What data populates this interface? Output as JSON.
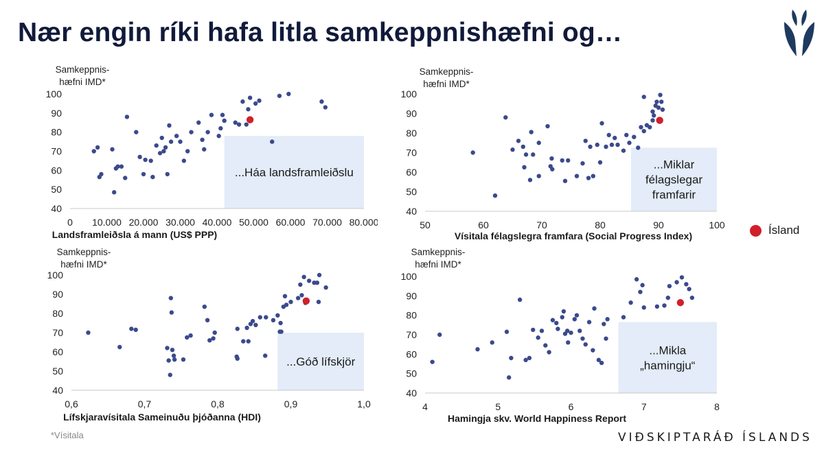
{
  "page": {
    "title": "Nær engin ríki hafa litla samkeppnishæfni og…",
    "footnote": "*Vísitala",
    "brand": "VIÐSKIPTARÁÐ ÍSLANDS",
    "legend_label": "Ísland",
    "logo_icon": "shield-leaf-logo-icon"
  },
  "colors": {
    "dot": "#3b4a8c",
    "highlight": "#d0202a",
    "callout": "#e3ecf8",
    "title": "#111a3a"
  },
  "chart_data": [
    {
      "type": "scatter",
      "ylabel": [
        "Samkeppnis-",
        "hæfni IMD*"
      ],
      "xlabel": "Landsframleiðsla á mann (US$ PPP)",
      "xlim": [
        0,
        80000
      ],
      "ylim": [
        40,
        100
      ],
      "xticks": [
        0,
        10000,
        20000,
        30000,
        40000,
        50000,
        60000,
        70000,
        80000
      ],
      "xtick_labels": [
        "0",
        "10.000",
        "20.000",
        "30.000",
        "40.000",
        "50.000",
        "60.000",
        "70.000",
        "80.000"
      ],
      "yticks": [
        40,
        50,
        60,
        70,
        80,
        90,
        100
      ],
      "callout": {
        "text": [
          "...Háa landsframleiðslu"
        ],
        "x0": 42000,
        "x1": 80000,
        "y0": 40,
        "y1": 78
      },
      "highlight": {
        "x": 49000,
        "y": 86.5
      },
      "points": [
        [
          6500,
          70
        ],
        [
          7500,
          72
        ],
        [
          8000,
          56.5
        ],
        [
          8500,
          58
        ],
        [
          11500,
          71
        ],
        [
          12000,
          48.5
        ],
        [
          12500,
          61
        ],
        [
          13000,
          62
        ],
        [
          14000,
          62
        ],
        [
          15000,
          56
        ],
        [
          15500,
          88
        ],
        [
          18000,
          80
        ],
        [
          19000,
          67
        ],
        [
          20000,
          58
        ],
        [
          20500,
          65.5
        ],
        [
          22000,
          65
        ],
        [
          22500,
          56.5
        ],
        [
          23500,
          73
        ],
        [
          24500,
          69
        ],
        [
          25000,
          77
        ],
        [
          25500,
          70
        ],
        [
          26000,
          72
        ],
        [
          26500,
          58
        ],
        [
          27000,
          83.5
        ],
        [
          27500,
          75
        ],
        [
          29000,
          78
        ],
        [
          30000,
          75
        ],
        [
          31000,
          65
        ],
        [
          32000,
          70
        ],
        [
          33000,
          80
        ],
        [
          35000,
          85
        ],
        [
          36000,
          76
        ],
        [
          36500,
          71
        ],
        [
          37500,
          80
        ],
        [
          38500,
          89
        ],
        [
          40500,
          78
        ],
        [
          41000,
          82
        ],
        [
          41500,
          89
        ],
        [
          42000,
          86
        ],
        [
          45000,
          85
        ],
        [
          46000,
          84
        ],
        [
          47000,
          96
        ],
        [
          48000,
          84
        ],
        [
          48500,
          92
        ],
        [
          49000,
          98
        ],
        [
          50500,
          95
        ],
        [
          51500,
          96.5
        ],
        [
          55000,
          75
        ],
        [
          57000,
          99
        ],
        [
          59500,
          100
        ],
        [
          68500,
          96
        ],
        [
          69500,
          93
        ]
      ]
    },
    {
      "type": "scatter",
      "ylabel": [
        "Samkeppnis-",
        "hæfni IMD*"
      ],
      "xlabel": "Vísitala félagslegra framfara (Social Progress Index)",
      "xlim": [
        50,
        100
      ],
      "ylim": [
        40,
        100
      ],
      "xticks": [
        50,
        60,
        70,
        80,
        90,
        100
      ],
      "xtick_labels": [
        "50",
        "60",
        "70",
        "80",
        "90",
        "100"
      ],
      "yticks": [
        40,
        50,
        60,
        70,
        80,
        90,
        100
      ],
      "callout": {
        "text": [
          "...Miklar",
          "félagslegar",
          "framfarir"
        ],
        "x0": 85.3,
        "x1": 100,
        "y0": 40,
        "y1": 72.5
      },
      "highlight": {
        "x": 90.2,
        "y": 86.5
      },
      "points": [
        [
          58.2,
          70
        ],
        [
          62,
          48
        ],
        [
          63.8,
          88
        ],
        [
          65,
          71.5
        ],
        [
          66,
          76
        ],
        [
          66.8,
          73
        ],
        [
          67,
          62.5
        ],
        [
          67.3,
          69
        ],
        [
          68,
          56
        ],
        [
          68.2,
          80.5
        ],
        [
          68.5,
          69
        ],
        [
          69.5,
          75
        ],
        [
          69.5,
          58
        ],
        [
          71,
          83.5
        ],
        [
          71.5,
          63
        ],
        [
          71.7,
          67
        ],
        [
          71.8,
          61.5
        ],
        [
          73.5,
          66
        ],
        [
          74,
          55.5
        ],
        [
          74.5,
          66
        ],
        [
          76,
          58
        ],
        [
          77,
          64.5
        ],
        [
          77.5,
          76
        ],
        [
          78,
          57
        ],
        [
          78.3,
          73
        ],
        [
          78.8,
          58
        ],
        [
          79.5,
          74
        ],
        [
          80,
          65
        ],
        [
          80.3,
          85
        ],
        [
          81,
          73
        ],
        [
          81.5,
          79
        ],
        [
          82,
          74
        ],
        [
          82.5,
          77.5
        ],
        [
          83,
          74
        ],
        [
          84,
          71
        ],
        [
          84.5,
          79
        ],
        [
          85,
          75
        ],
        [
          85.8,
          78
        ],
        [
          86.5,
          72.5
        ],
        [
          87,
          83
        ],
        [
          87.5,
          98.5
        ],
        [
          87.5,
          81
        ],
        [
          88,
          84
        ],
        [
          88.5,
          83
        ],
        [
          89,
          86.5
        ],
        [
          89,
          91
        ],
        [
          89.2,
          89
        ],
        [
          89.5,
          94
        ],
        [
          89.7,
          96
        ],
        [
          90,
          93
        ],
        [
          90.3,
          99.5
        ],
        [
          90.5,
          96
        ],
        [
          90.7,
          92
        ]
      ]
    },
    {
      "type": "scatter",
      "ylabel": [
        "Samkeppnis-",
        "hæfni IMD*"
      ],
      "xlabel": "Lífskjaravísitala Sameinuðu þjóðanna (HDI)",
      "xlim": [
        0.6,
        1.0
      ],
      "ylim": [
        40,
        100
      ],
      "xticks": [
        0.6,
        0.7,
        0.8,
        0.9,
        1.0
      ],
      "xtick_labels": [
        "0,6",
        "0,7",
        "0,8",
        "0,9",
        "1,0"
      ],
      "yticks": [
        40,
        50,
        60,
        70,
        80,
        90,
        100
      ],
      "callout": {
        "text": [
          "...Góð lífskjör"
        ],
        "x0": 0.882,
        "x1": 1.0,
        "y0": 40,
        "y1": 70
      },
      "highlight": {
        "x": 0.921,
        "y": 86.5
      },
      "points": [
        [
          0.623,
          70
        ],
        [
          0.666,
          62.5
        ],
        [
          0.682,
          72
        ],
        [
          0.688,
          71.5
        ],
        [
          0.731,
          62
        ],
        [
          0.733,
          55.5
        ],
        [
          0.735,
          48
        ],
        [
          0.736,
          88
        ],
        [
          0.737,
          80.5
        ],
        [
          0.738,
          61
        ],
        [
          0.74,
          58
        ],
        [
          0.741,
          56
        ],
        [
          0.753,
          56
        ],
        [
          0.758,
          67.5
        ],
        [
          0.763,
          68.5
        ],
        [
          0.782,
          83.5
        ],
        [
          0.786,
          76.5
        ],
        [
          0.789,
          66
        ],
        [
          0.794,
          67
        ],
        [
          0.796,
          70
        ],
        [
          0.826,
          57.5
        ],
        [
          0.827,
          72
        ],
        [
          0.827,
          56.5
        ],
        [
          0.835,
          65.5
        ],
        [
          0.84,
          72.5
        ],
        [
          0.842,
          65.5
        ],
        [
          0.845,
          74.5
        ],
        [
          0.848,
          76
        ],
        [
          0.852,
          74
        ],
        [
          0.858,
          78
        ],
        [
          0.865,
          58
        ],
        [
          0.866,
          78
        ],
        [
          0.876,
          76.5
        ],
        [
          0.882,
          79
        ],
        [
          0.885,
          70.5
        ],
        [
          0.886,
          75
        ],
        [
          0.887,
          70.5
        ],
        [
          0.89,
          83.5
        ],
        [
          0.892,
          89
        ],
        [
          0.894,
          84.5
        ],
        [
          0.9,
          86
        ],
        [
          0.91,
          88
        ],
        [
          0.913,
          95
        ],
        [
          0.915,
          89.5
        ],
        [
          0.918,
          99
        ],
        [
          0.92,
          85.5
        ],
        [
          0.925,
          97
        ],
        [
          0.932,
          96
        ],
        [
          0.936,
          96
        ],
        [
          0.938,
          86
        ],
        [
          0.939,
          100
        ],
        [
          0.948,
          93.5
        ]
      ]
    },
    {
      "type": "scatter",
      "ylabel": [
        "Samkeppnis-",
        "hæfni IMD*"
      ],
      "xlabel": "Hamingja skv. World Happiness Report",
      "xlim": [
        4,
        8
      ],
      "ylim": [
        40,
        100
      ],
      "xticks": [
        4,
        5,
        6,
        7,
        8
      ],
      "xtick_labels": [
        "4",
        "5",
        "6",
        "7",
        "8"
      ],
      "yticks": [
        40,
        50,
        60,
        70,
        80,
        90,
        100
      ],
      "callout": {
        "text": [
          "...Mikla",
          "„hamingju“"
        ],
        "x0": 6.65,
        "x1": 8,
        "y0": 40,
        "y1": 76.5
      },
      "highlight": {
        "x": 7.5,
        "y": 86.5
      },
      "points": [
        [
          4.1,
          56
        ],
        [
          4.2,
          70
        ],
        [
          4.72,
          62.5
        ],
        [
          4.92,
          66
        ],
        [
          5.12,
          71.5
        ],
        [
          5.15,
          48
        ],
        [
          5.18,
          58
        ],
        [
          5.3,
          88
        ],
        [
          5.38,
          57
        ],
        [
          5.43,
          58
        ],
        [
          5.48,
          72.5
        ],
        [
          5.55,
          68.5
        ],
        [
          5.6,
          72
        ],
        [
          5.65,
          64.5
        ],
        [
          5.7,
          61
        ],
        [
          5.75,
          77.5
        ],
        [
          5.8,
          76
        ],
        [
          5.82,
          73
        ],
        [
          5.88,
          79
        ],
        [
          5.9,
          82
        ],
        [
          5.92,
          70.5
        ],
        [
          5.95,
          72
        ],
        [
          5.96,
          66
        ],
        [
          6.0,
          71
        ],
        [
          6.05,
          78
        ],
        [
          6.08,
          80
        ],
        [
          6.12,
          72
        ],
        [
          6.16,
          68
        ],
        [
          6.2,
          65
        ],
        [
          6.25,
          76.5
        ],
        [
          6.3,
          62
        ],
        [
          6.32,
          83.5
        ],
        [
          6.38,
          57
        ],
        [
          6.42,
          55.5
        ],
        [
          6.45,
          75.5
        ],
        [
          6.48,
          68
        ],
        [
          6.5,
          78
        ],
        [
          6.72,
          79
        ],
        [
          6.82,
          86.5
        ],
        [
          6.9,
          98.5
        ],
        [
          6.95,
          92
        ],
        [
          6.98,
          95.5
        ],
        [
          7.0,
          84
        ],
        [
          7.18,
          84.5
        ],
        [
          7.28,
          85
        ],
        [
          7.33,
          89
        ],
        [
          7.35,
          95
        ],
        [
          7.45,
          97
        ],
        [
          7.52,
          99.5
        ],
        [
          7.58,
          96
        ],
        [
          7.62,
          93.5
        ],
        [
          7.66,
          89
        ]
      ]
    }
  ]
}
